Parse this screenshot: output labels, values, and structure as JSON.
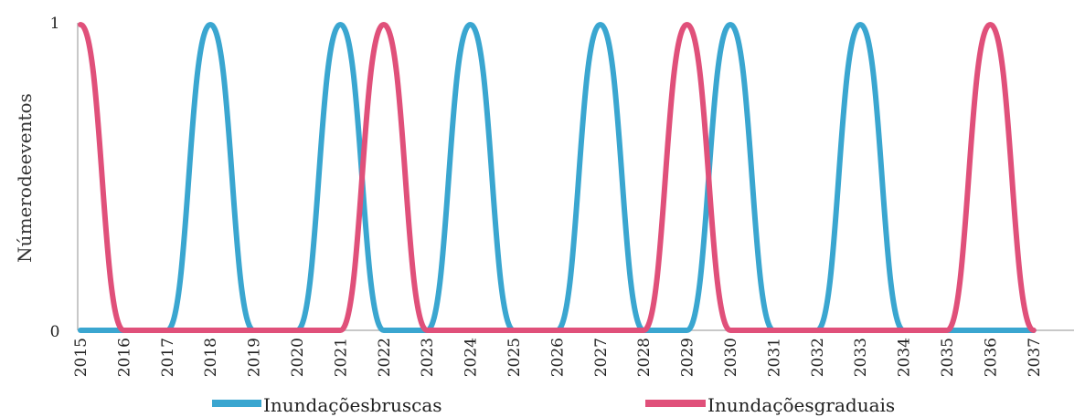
{
  "chart_data": {
    "type": "line",
    "ylabel": "Númerodeeventos",
    "xlabel": "",
    "yticks": [
      "0",
      "1"
    ],
    "ylim": [
      0,
      1
    ],
    "x": [
      "2015",
      "2016",
      "2017",
      "2018",
      "2019",
      "2020",
      "2021",
      "2022",
      "2023",
      "2024",
      "2025",
      "2026",
      "2027",
      "2028",
      "2029",
      "2030",
      "2031",
      "2032",
      "2033",
      "2034",
      "2035",
      "2036",
      "2037"
    ],
    "series": [
      {
        "name": "Inundaçõesbruscas",
        "color": "#3aa6d0",
        "values": [
          0,
          0,
          0,
          1,
          0,
          0,
          1,
          0,
          0,
          1,
          0,
          0,
          1,
          0,
          0,
          1,
          0,
          0,
          1,
          0,
          0,
          0,
          0
        ]
      },
      {
        "name": "Inundaçõesgraduais",
        "color": "#e0507a",
        "values": [
          1,
          0,
          0,
          0,
          0,
          0,
          0,
          1,
          0,
          0,
          0,
          0,
          0,
          0,
          1,
          0,
          0,
          0,
          0,
          0,
          0,
          1,
          0
        ]
      }
    ],
    "legend_position": "bottom",
    "grid": false
  }
}
